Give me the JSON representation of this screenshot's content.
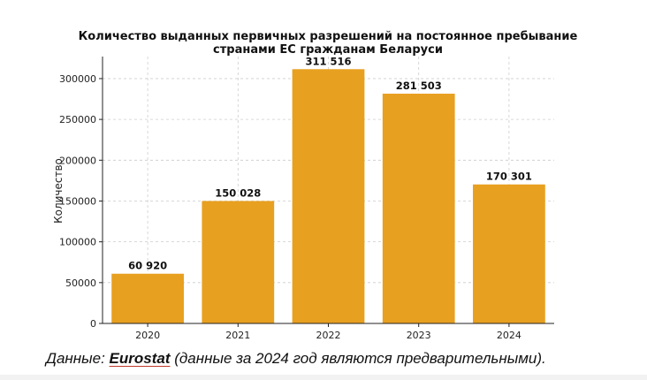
{
  "chart_data": {
    "type": "bar",
    "title_lines": [
      "Количество выданных первичных разрешений на постоянное пребывание",
      "странами ЕС гражданам Беларуси"
    ],
    "categories": [
      "2020",
      "2021",
      "2022",
      "2023",
      "2024"
    ],
    "values": [
      60920,
      150028,
      311516,
      281503,
      170301
    ],
    "value_labels": [
      "60 920",
      "150 028",
      "311 516",
      "281 503",
      "170 301"
    ],
    "xlabel": "",
    "ylabel": "Количество",
    "ylim": [
      0,
      327000
    ],
    "yticks": [
      0,
      50000,
      100000,
      150000,
      200000,
      250000,
      300000
    ],
    "grid": true,
    "bar_color": "#e8a020"
  },
  "caption": {
    "prefix": "Данные: ",
    "source": "Eurostat",
    "suffix": " (данные за 2024 год являются предварительными)."
  }
}
